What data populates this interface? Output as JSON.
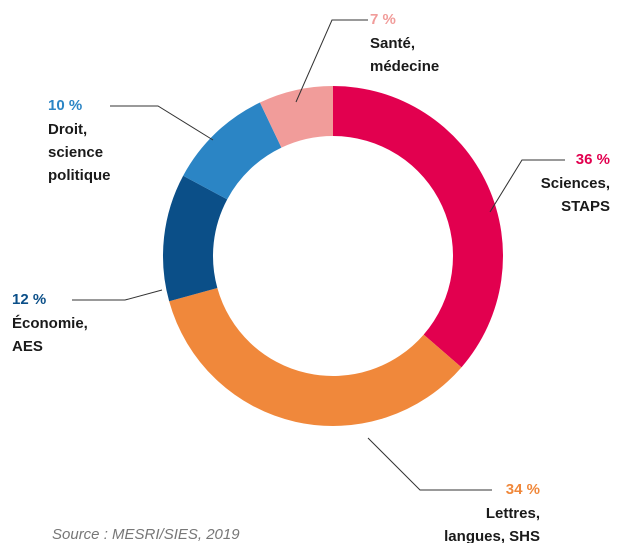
{
  "chart_data": {
    "type": "donut",
    "categories": [
      [
        "Sciences,",
        "STAPS"
      ],
      [
        "Lettres,",
        "langues, SHS"
      ],
      [
        "Économie,",
        "AES"
      ],
      [
        "Droit,",
        "science",
        "politique"
      ],
      [
        "Santé,",
        "médecine"
      ]
    ],
    "values": [
      36,
      34,
      12,
      10,
      7
    ],
    "value_labels": [
      "36 %",
      "34 %",
      "12 %",
      "10 %",
      "7 %"
    ],
    "colors": [
      "#e2004f",
      "#f0883b",
      "#0b4f88",
      "#2b85c5",
      "#f19c9a"
    ],
    "source": "Source : MESRI/SIES, 2019"
  }
}
